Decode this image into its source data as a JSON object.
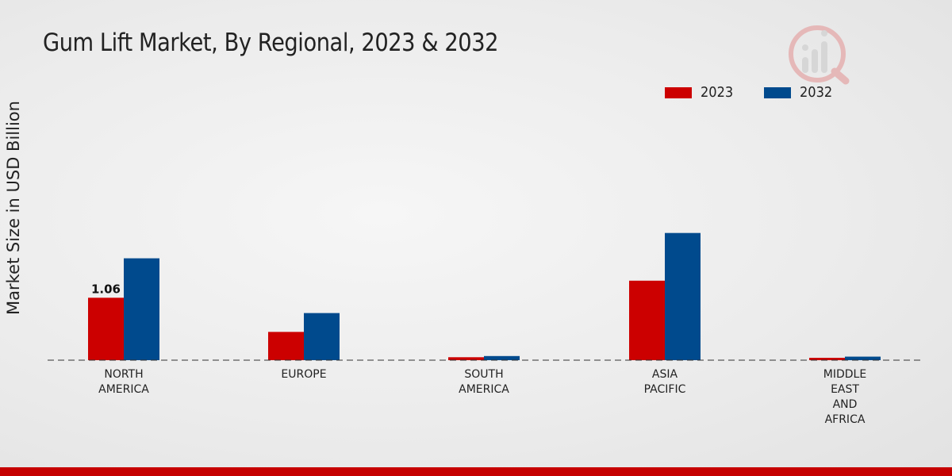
{
  "chart_data": {
    "type": "bar",
    "title": "Gum Lift Market, By Regional, 2023 & 2032",
    "xlabel": "",
    "ylabel": "Market Size in USD Billion",
    "categories": [
      [
        "NORTH",
        "AMERICA"
      ],
      [
        "EUROPE"
      ],
      [
        "SOUTH",
        "AMERICA"
      ],
      [
        "ASIA",
        "PACIFIC"
      ],
      [
        "MIDDLE",
        "EAST",
        "AND",
        "AFRICA"
      ]
    ],
    "series": [
      {
        "name": "2023",
        "color": "#cc0000",
        "values": [
          1.06,
          0.48,
          0.05,
          1.35,
          0.04
        ]
      },
      {
        "name": "2032",
        "color": "#004a8d",
        "values": [
          1.73,
          0.8,
          0.07,
          2.16,
          0.06
        ]
      }
    ],
    "data_labels": [
      {
        "series": 0,
        "index": 0,
        "text": "1.06"
      }
    ],
    "ylim": [
      0,
      4.5
    ],
    "grid": false,
    "legend_position": "top-right"
  },
  "legend": {
    "items": [
      {
        "label": "2023",
        "color": "#cc0000"
      },
      {
        "label": "2032",
        "color": "#004a8d"
      }
    ]
  },
  "accent": "#c60000"
}
